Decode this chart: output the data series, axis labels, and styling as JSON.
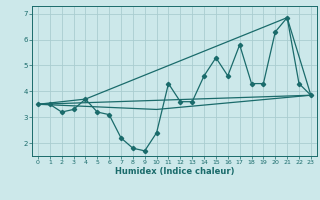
{
  "title": "",
  "xlabel": "Humidex (Indice chaleur)",
  "background_color": "#cce8ea",
  "grid_color": "#aacdd0",
  "line_color": "#1a6b6b",
  "xlim": [
    -0.5,
    23.5
  ],
  "ylim": [
    1.5,
    7.3
  ],
  "xticks": [
    0,
    1,
    2,
    3,
    4,
    5,
    6,
    7,
    8,
    9,
    10,
    11,
    12,
    13,
    14,
    15,
    16,
    17,
    18,
    19,
    20,
    21,
    22,
    23
  ],
  "yticks": [
    2,
    3,
    4,
    5,
    6,
    7
  ],
  "line1_x": [
    0,
    1,
    2,
    3,
    4,
    5,
    6,
    7,
    8,
    9,
    10,
    11,
    12,
    13,
    14,
    15,
    16,
    17,
    18,
    19,
    20,
    21,
    22,
    23
  ],
  "line1_y": [
    3.5,
    3.5,
    3.2,
    3.3,
    3.7,
    3.2,
    3.1,
    2.2,
    1.8,
    1.7,
    2.4,
    4.3,
    3.6,
    3.6,
    4.6,
    5.3,
    4.6,
    5.8,
    4.3,
    4.3,
    6.3,
    6.85,
    4.3,
    3.85
  ],
  "line2_x": [
    0,
    4,
    21,
    23
  ],
  "line2_y": [
    3.5,
    3.7,
    6.85,
    3.85
  ],
  "line3_x": [
    0,
    23
  ],
  "line3_y": [
    3.5,
    3.85
  ],
  "line4_x": [
    0,
    10,
    23
  ],
  "line4_y": [
    3.5,
    3.3,
    3.85
  ]
}
